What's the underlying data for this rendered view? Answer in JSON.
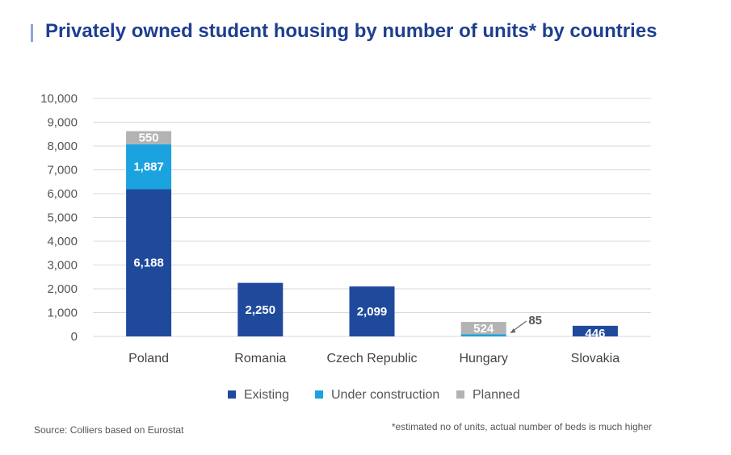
{
  "title": "Privately owned student housing by number of units* by countries",
  "source": "Source: Colliers based on Eurostat",
  "footnote": "*estimated no of units, actual number of beds is much higher",
  "colors": {
    "existing": "#1f4a9c",
    "under_construction": "#1aa3df",
    "planned": "#b3b3b3",
    "grid": "#d9d9d9",
    "title": "#1e3f8f"
  },
  "chart_data": {
    "type": "bar",
    "stacked": true,
    "categories": [
      "Poland",
      "Romania",
      "Czech Republic",
      "Hungary",
      "Slovakia"
    ],
    "series": [
      {
        "name": "Existing",
        "values": [
          6188,
          2250,
          2099,
          85,
          446
        ]
      },
      {
        "name": "Under construction",
        "values": [
          1887,
          0,
          0,
          85,
          0
        ]
      },
      {
        "name": "Planned",
        "values": [
          550,
          0,
          0,
          524,
          0
        ]
      }
    ],
    "data_labels": [
      {
        "category": "Poland",
        "series": "Existing",
        "text": "6,188"
      },
      {
        "category": "Poland",
        "series": "Under construction",
        "text": "1,887"
      },
      {
        "category": "Poland",
        "series": "Planned",
        "text": "550"
      },
      {
        "category": "Romania",
        "series": "Existing",
        "text": "2,250"
      },
      {
        "category": "Czech Republic",
        "series": "Existing",
        "text": "2,099"
      },
      {
        "category": "Hungary",
        "series": "Planned",
        "text": "524"
      },
      {
        "category": "Hungary",
        "series": "Under construction",
        "text": "85"
      },
      {
        "category": "Slovakia",
        "series": "Existing",
        "text": "446"
      }
    ],
    "y_ticks": [
      "0",
      "1,000",
      "2,000",
      "3,000",
      "4,000",
      "5,000",
      "6,000",
      "7,000",
      "8,000",
      "9,000",
      "10,000"
    ],
    "ylim": [
      0,
      10000
    ],
    "grid": true,
    "legend": {
      "placement": "bottom",
      "entries": [
        "Existing",
        "Under construction",
        "Planned"
      ]
    }
  }
}
